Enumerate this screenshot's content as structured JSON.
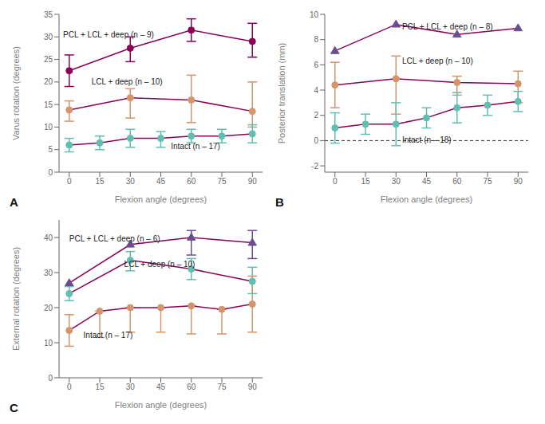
{
  "chart_data": [
    {
      "type": "line",
      "panel_label": "A",
      "x_label": "Flexion angle (degrees)",
      "y_label": "Varus rotation (degrees)",
      "color": "#8B0057",
      "grid": false,
      "xlim": [
        -5,
        95
      ],
      "xticks": [
        0,
        15,
        30,
        45,
        60,
        75,
        90
      ],
      "ylim": [
        0,
        35
      ],
      "yticks": [
        0,
        5,
        10,
        15,
        20,
        25,
        30,
        35
      ],
      "series": [
        {
          "x": [
            0,
            30,
            60,
            90
          ],
          "values": [
            22.5,
            27.5,
            31.5,
            29.0
          ],
          "error_low": [
            3.5,
            3.0,
            2.5,
            3.5
          ],
          "error_high": [
            3.5,
            2.5,
            2.5,
            4.0
          ],
          "color": "#8B0057",
          "marker": "circle"
        },
        {
          "x": [
            0,
            30,
            60,
            90
          ],
          "values": [
            13.8,
            16.5,
            16.0,
            13.5
          ],
          "error_low": [
            2.5,
            4.5,
            5.0,
            3.5
          ],
          "error_high": [
            2.0,
            2.0,
            5.5,
            6.5
          ],
          "color": "#D4956A",
          "marker": "circle"
        },
        {
          "x": [
            0,
            15,
            30,
            45,
            60,
            75,
            90
          ],
          "values": [
            6.0,
            6.5,
            7.5,
            7.5,
            8.0,
            8.0,
            8.5
          ],
          "error_low": [
            1.5,
            1.5,
            2.0,
            2.0,
            1.5,
            1.5,
            2.0
          ],
          "error_high": [
            1.5,
            1.5,
            2.0,
            1.5,
            1.5,
            1.5,
            2.0
          ],
          "color": "#5FBFB0",
          "marker": "circle"
        }
      ],
      "annotations": [
        "PCL + LCL + deep (n – 9)",
        "LCL + deep (n – 10)",
        "Intact (n – 17)"
      ]
    },
    {
      "type": "line",
      "panel_label": "B",
      "x_label": "Flexion angle (degrees)",
      "y_label": "Posterior translation (mm)",
      "color": "#8B0057",
      "grid": false,
      "xlim": [
        -5,
        95
      ],
      "xticks": [
        0,
        15,
        30,
        45,
        60,
        75,
        90
      ],
      "ylim": [
        -2.5,
        10
      ],
      "yticks": [
        -2,
        0,
        2,
        4,
        6,
        8,
        10
      ],
      "hline": 0,
      "series": [
        {
          "x": [
            0,
            30,
            60,
            90
          ],
          "values": [
            7.1,
            9.2,
            8.4,
            8.9
          ],
          "error_low": [
            0,
            0,
            0,
            0
          ],
          "error_high": [
            0,
            0,
            0,
            0
          ],
          "color": "#6A4C93",
          "marker": "triangle"
        },
        {
          "x": [
            0,
            30,
            60,
            90
          ],
          "values": [
            4.4,
            4.9,
            4.6,
            4.5
          ],
          "error_low": [
            1.8,
            2.8,
            1.0,
            1.5
          ],
          "error_high": [
            1.8,
            1.8,
            0.5,
            1.0
          ],
          "color": "#D4956A",
          "marker": "circle"
        },
        {
          "x": [
            0,
            15,
            30,
            45,
            60,
            75,
            90
          ],
          "values": [
            1.0,
            1.3,
            1.3,
            1.8,
            2.6,
            2.8,
            3.1
          ],
          "error_low": [
            1.2,
            0.8,
            1.7,
            0.8,
            1.2,
            0.8,
            0.8
          ],
          "error_high": [
            1.2,
            0.8,
            1.7,
            0.8,
            1.2,
            0.8,
            0.8
          ],
          "color": "#5FBFB0",
          "marker": "circle"
        }
      ],
      "annotations": [
        "PCL + LCL + deep (n – 8)",
        "LCL + deep (n – 10)",
        "Intact (n – 18)"
      ]
    },
    {
      "type": "line",
      "panel_label": "C",
      "x_label": "Flexion angle (degrees)",
      "y_label": "External rotation (degrees)",
      "color": "#8B0057",
      "grid": false,
      "xlim": [
        -5,
        95
      ],
      "xticks": [
        0,
        15,
        30,
        45,
        60,
        75,
        90
      ],
      "ylim": [
        0,
        45
      ],
      "yticks": [
        0,
        10,
        20,
        30,
        40
      ],
      "series": [
        {
          "x": [
            0,
            30,
            60,
            90
          ],
          "values": [
            27.0,
            38.0,
            40.0,
            38.5
          ],
          "error_low": [
            0,
            0,
            5.0,
            4.5
          ],
          "error_high": [
            0,
            0,
            2.0,
            3.5
          ],
          "color": "#6A4C93",
          "marker": "triangle"
        },
        {
          "x": [
            0,
            30,
            60,
            90
          ],
          "values": [
            24.0,
            33.5,
            31.0,
            27.5
          ],
          "error_low": [
            2.0,
            3.0,
            3.0,
            3.5
          ],
          "error_high": [
            2.0,
            2.5,
            3.0,
            4.0
          ],
          "color": "#5FBFB0",
          "marker": "circle"
        },
        {
          "x": [
            0,
            15,
            30,
            45,
            60,
            75,
            90
          ],
          "values": [
            13.5,
            19.0,
            20.0,
            20.0,
            20.5,
            19.5,
            21.0
          ],
          "error_low": [
            4.5,
            7.5,
            7.0,
            7.0,
            8.0,
            7.0,
            8.0
          ],
          "error_high": [
            4.5,
            0,
            0,
            0,
            0,
            0,
            8.0
          ],
          "color": "#D4956A",
          "marker": "circle"
        }
      ],
      "annotations": [
        "PCL + LCL + deep (n – 6)",
        "LCL + deep (n – 10)",
        "Intact (n – 17)"
      ]
    }
  ]
}
